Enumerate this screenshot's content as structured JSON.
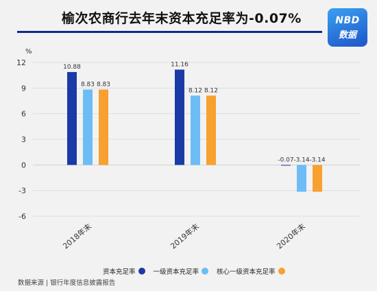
{
  "title": "榆次农商行去年末资本充足率为-0.07%",
  "logo": {
    "line1": "NBD",
    "line2": "数据"
  },
  "source": "数据来源 | 银行年度信息披露报告",
  "colors": {
    "series1": "#1a3aa6",
    "series2": "#6dbcf5",
    "series3": "#f8a030",
    "rule": "#0d2a8c"
  },
  "chart_data": {
    "type": "bar",
    "categories": [
      "2018年末",
      "2019年末",
      "2020年末"
    ],
    "series": [
      {
        "name": "资本充足率",
        "values": [
          10.88,
          11.16,
          -0.07
        ],
        "labels": [
          "10.88",
          "11.16",
          "-0.07"
        ]
      },
      {
        "name": "一级资本充足率",
        "values": [
          8.83,
          8.12,
          -3.14
        ],
        "labels": [
          "8.83",
          "8.12",
          "-3.14"
        ]
      },
      {
        "name": "核心一级资本充足率",
        "values": [
          8.83,
          8.12,
          -3.14
        ],
        "labels": [
          "8.83",
          "8.12",
          "-3.14"
        ]
      }
    ],
    "yunit": "%",
    "ylim": [
      -6,
      12
    ],
    "yticks": [
      "12",
      "9",
      "6",
      "3",
      "0",
      "-3",
      "-6"
    ],
    "ytick_values": [
      12,
      9,
      6,
      3,
      0,
      -3,
      -6
    ],
    "grid": true,
    "legend": "bottom"
  }
}
